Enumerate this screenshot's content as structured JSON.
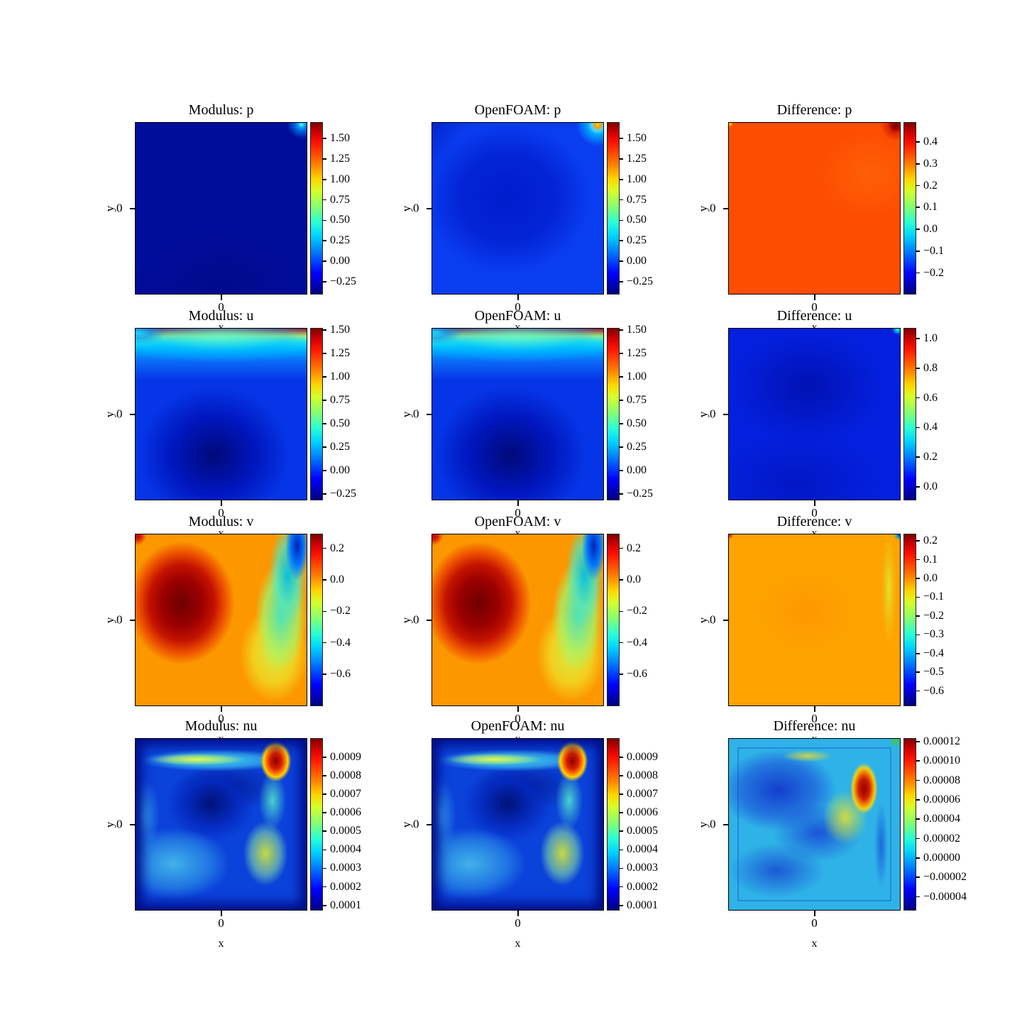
{
  "figure": {
    "background": "#ffffff",
    "columns": [
      "Modulus",
      "OpenFOAM",
      "Difference"
    ],
    "variables": [
      "p",
      "u",
      "v",
      "nu"
    ],
    "colormap": "jet",
    "colormap_stops": [
      "#000080",
      "#0000ff",
      "#00d4ff",
      "#7dff7a",
      "#ffd600",
      "#ff1400",
      "#7f0000"
    ]
  },
  "chart_data": [
    {
      "type": "heatmap",
      "title": "Modulus: p",
      "variable": "p",
      "source": "Modulus",
      "xlabel": "x",
      "ylabel": "y",
      "x_tick": "0",
      "y_tick": "0",
      "colormap": "jet",
      "colorbar_ticks": [
        "1.50",
        "1.25",
        "1.00",
        "0.75",
        "0.50",
        "0.25",
        "0.00",
        "−0.25"
      ],
      "field_summary": "nearly uniform dark navy (p ≈ −0.3) with a small cyan spot at the top-right corner"
    },
    {
      "type": "heatmap",
      "title": "OpenFOAM: p",
      "variable": "p",
      "source": "OpenFOAM",
      "xlabel": "x",
      "ylabel": "y",
      "x_tick": "0",
      "y_tick": "0",
      "colormap": "jet",
      "colorbar_ticks": [
        "1.50",
        "1.25",
        "1.00",
        "0.75",
        "0.50",
        "0.25",
        "0.00",
        "−0.25"
      ],
      "field_summary": "medium blue field (p ≈ 0), darker toward center, small yellow-cored spot with cyan halo at top-right corner"
    },
    {
      "type": "heatmap",
      "title": "Difference: p",
      "variable": "p",
      "source": "Difference",
      "xlabel": "x",
      "ylabel": "y",
      "x_tick": "0",
      "y_tick": "0",
      "colormap": "jet",
      "colorbar_ticks": [
        "0.4",
        "0.3",
        "0.2",
        "0.1",
        "0.0",
        "−0.1",
        "−0.2"
      ],
      "field_summary": "nearly uniform orange-red (≈0.35) with dark-red spot at top-right corner and tiny yellow dot at top-left"
    },
    {
      "type": "heatmap",
      "title": "Modulus: u",
      "variable": "u",
      "source": "Modulus",
      "xlabel": "x",
      "ylabel": "y",
      "x_tick": "0",
      "y_tick": "0",
      "colormap": "jet",
      "colorbar_ticks": [
        "1.50",
        "1.25",
        "1.00",
        "0.75",
        "0.50",
        "0.25",
        "0.00",
        "−0.25"
      ],
      "field_summary": "thin dark-red lid band (u ≈ 1.5) along top fading through yellow and cyan into blue; dark navy recirculation blob (u ≈ −0.25) in lower center"
    },
    {
      "type": "heatmap",
      "title": "OpenFOAM: u",
      "variable": "u",
      "source": "OpenFOAM",
      "xlabel": "x",
      "ylabel": "y",
      "x_tick": "0",
      "y_tick": "0",
      "colormap": "jet",
      "colorbar_ticks": [
        "1.50",
        "1.25",
        "1.00",
        "0.75",
        "0.50",
        "0.25",
        "0.00",
        "−0.25"
      ],
      "field_summary": "same lid-driven pattern as Modulus: u — red lid band fading to blue with dark navy blob in lower center"
    },
    {
      "type": "heatmap",
      "title": "Difference: u",
      "variable": "u",
      "source": "Difference",
      "xlabel": "x",
      "ylabel": "y",
      "x_tick": "0",
      "y_tick": "0",
      "colormap": "jet",
      "colorbar_ticks": [
        "1.0",
        "0.8",
        "0.6",
        "0.4",
        "0.2",
        "0.0"
      ],
      "field_summary": "nearly uniform deep blue (≈0) with tiny green dot at top-right corner"
    },
    {
      "type": "heatmap",
      "title": "Modulus: v",
      "variable": "v",
      "source": "Modulus",
      "xlabel": "x",
      "ylabel": "y",
      "x_tick": "0",
      "y_tick": "0",
      "colormap": "jet",
      "colorbar_ticks": [
        "0.2",
        "0.0",
        "−0.2",
        "−0.4",
        "−0.6"
      ],
      "field_summary": "orange field with dark-red blob (v ≈ 0.25) left of center and cyan-to-blue teardrop (v ≈ −0.7) descending from top-right corner"
    },
    {
      "type": "heatmap",
      "title": "OpenFOAM: v",
      "variable": "v",
      "source": "OpenFOAM",
      "xlabel": "x",
      "ylabel": "y",
      "x_tick": "0",
      "y_tick": "0",
      "colormap": "jet",
      "colorbar_ticks": [
        "0.2",
        "0.0",
        "−0.2",
        "−0.4",
        "−0.6"
      ],
      "field_summary": "same pattern as Modulus: v — red blob on left, cyan-blue teardrop near right edge"
    },
    {
      "type": "heatmap",
      "title": "Difference: v",
      "variable": "v",
      "source": "Difference",
      "xlabel": "x",
      "ylabel": "y",
      "x_tick": "0",
      "y_tick": "0",
      "colormap": "jet",
      "colorbar_ticks": [
        "0.2",
        "0.1",
        "0.0",
        "−0.1",
        "−0.2",
        "−0.3",
        "−0.4",
        "−0.5",
        "−0.6"
      ],
      "field_summary": "nearly uniform orange (≈0) with faint yellow-green streak near right edge, tiny red dot top-left, tiny blue dot top-right"
    },
    {
      "type": "heatmap",
      "title": "Modulus: nu",
      "variable": "nu",
      "source": "Modulus",
      "xlabel": "x",
      "ylabel": "y",
      "x_tick": "0",
      "y_tick": "0",
      "colormap": "jet",
      "colorbar_ticks": [
        "0.0009",
        "0.0008",
        "0.0007",
        "0.0006",
        "0.0005",
        "0.0004",
        "0.0003",
        "0.0002",
        "0.0001"
      ],
      "field_summary": "dark navy border frame; cyan band with yellow streak near top; red maximum blob (≈0.00095) at upper right; cyan and yellow-green patches right and lower left; dark blue core"
    },
    {
      "type": "heatmap",
      "title": "OpenFOAM: nu",
      "variable": "nu",
      "source": "OpenFOAM",
      "xlabel": "x",
      "ylabel": "y",
      "x_tick": "0",
      "y_tick": "0",
      "colormap": "jet",
      "colorbar_ticks": [
        "0.0009",
        "0.0008",
        "0.0007",
        "0.0006",
        "0.0005",
        "0.0004",
        "0.0003",
        "0.0002",
        "0.0001"
      ],
      "field_summary": "same eddy-viscosity pattern as Modulus: nu — cyan top band, red blob upper right, dark navy frame"
    },
    {
      "type": "heatmap",
      "title": "Difference: nu",
      "variable": "nu",
      "source": "Difference",
      "xlabel": "x",
      "ylabel": "y",
      "x_tick": "0",
      "y_tick": "0",
      "colormap": "jet",
      "colorbar_ticks": [
        "0.00012",
        "0.00010",
        "0.00008",
        "0.00006",
        "0.00004",
        "0.00002",
        "0.00000",
        "−0.00002",
        "−0.00004"
      ],
      "field_summary": "cyan field with blue interior blobs, elongated red maximum (≈0.00012) at upper right with yellow tail, yellow streak top-center, green top-right corner"
    }
  ]
}
